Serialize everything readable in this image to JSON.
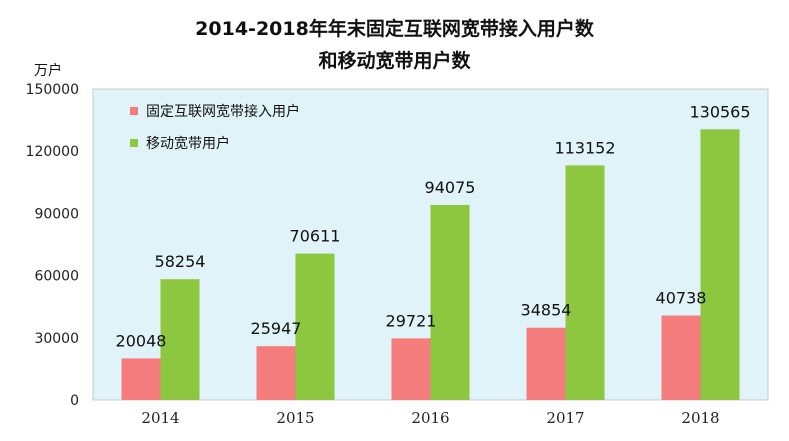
{
  "chart_data": {
    "type": "bar",
    "title_line1": "2014-2018年年末固定互联网宽带接入用户数",
    "title_line2": "和移动宽带用户数",
    "ylabel": "万户",
    "categories": [
      "2014",
      "2015",
      "2016",
      "2017",
      "2018"
    ],
    "yticks": [
      "0",
      "30000",
      "60000",
      "90000",
      "120000",
      "150000"
    ],
    "ylim": [
      0,
      150000
    ],
    "legend_position": "top-left",
    "grid": false,
    "series": [
      {
        "name": "固定互联网宽带接入用户",
        "color": "#f47c7c",
        "values": [
          20048,
          25947,
          29721,
          34854,
          40738
        ],
        "labels": [
          "20048",
          "25947",
          "29721",
          "34854",
          "40738"
        ]
      },
      {
        "name": "移动宽带用户",
        "color": "#8dc63f",
        "values": [
          58254,
          70611,
          94075,
          113152,
          130565
        ],
        "labels": [
          "58254",
          "70611",
          "94075",
          "113152",
          "130565"
        ]
      }
    ],
    "plot_background": "#dff3f8",
    "plot_border": "#c8c8c8"
  }
}
